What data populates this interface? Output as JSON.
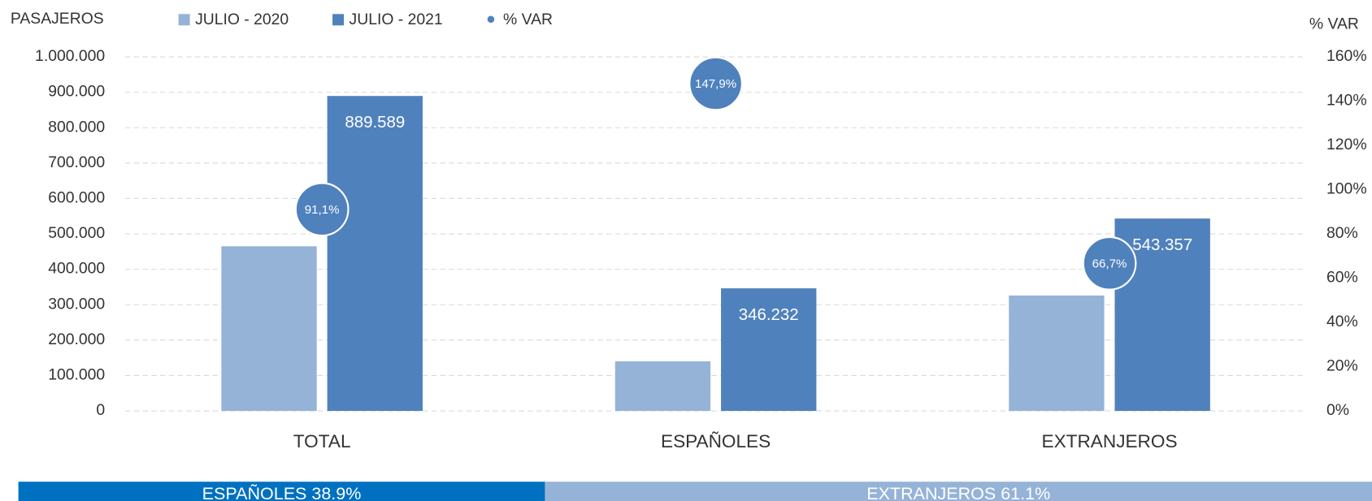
{
  "chart_data": {
    "type": "bar",
    "y_axis_label": "PASAJEROS",
    "y2_axis_label": "% VAR",
    "categories": [
      "TOTAL",
      "ESPAÑOLES",
      "EXTRANJEROS"
    ],
    "series": [
      {
        "name": "JULIO - 2020",
        "color": "#95b3d7",
        "values": [
          465000,
          140000,
          326000
        ]
      },
      {
        "name": "JULIO - 2021",
        "color": "#4f81bd",
        "values": [
          889589,
          346232,
          543357
        ],
        "value_labels": [
          "889.589",
          "346.232",
          "543.357"
        ]
      },
      {
        "name": "% VAR",
        "type": "scatter",
        "axis": "y2",
        "color": "#4f81bd",
        "values": [
          91.1,
          147.9,
          66.7
        ],
        "value_labels": [
          "91,1%",
          "147,9%",
          "66,7%"
        ]
      }
    ],
    "ylim": [
      0,
      1000000
    ],
    "yticks": [
      0,
      {
        "value": 100000,
        "label": "100.000"
      },
      {
        "value": 200000,
        "label": "200.000"
      },
      {
        "value": 300000,
        "label": "300.000"
      },
      {
        "value": 400000,
        "label": "400.000"
      },
      {
        "value": 500000,
        "label": "500.000"
      },
      {
        "value": 600000,
        "label": "600.000"
      },
      {
        "value": 700000,
        "label": "700.000"
      },
      {
        "value": 800000,
        "label": "800.000"
      },
      {
        "value": 900000,
        "label": "900.000"
      },
      {
        "value": 1000000,
        "label": "1.000.000"
      }
    ],
    "y2lim": [
      0,
      160
    ],
    "y2ticks": [
      {
        "value": 0,
        "label": "0%"
      },
      {
        "value": 20,
        "label": "20%"
      },
      {
        "value": 40,
        "label": "40%"
      },
      {
        "value": 60,
        "label": "60%"
      },
      {
        "value": 80,
        "label": "80%"
      },
      {
        "value": 100,
        "label": "100%"
      },
      {
        "value": 120,
        "label": "120%"
      },
      {
        "value": 140,
        "label": "140%"
      },
      {
        "value": 160,
        "label": "160%"
      }
    ],
    "grid": true,
    "legend": "top",
    "share_bar": [
      {
        "label": "ESPAÑOLES 38.9%",
        "value": 38.9,
        "color": "#0070c0"
      },
      {
        "label": "EXTRANJEROS 61.1%",
        "value": 61.1,
        "color": "#95b3d7"
      }
    ]
  }
}
